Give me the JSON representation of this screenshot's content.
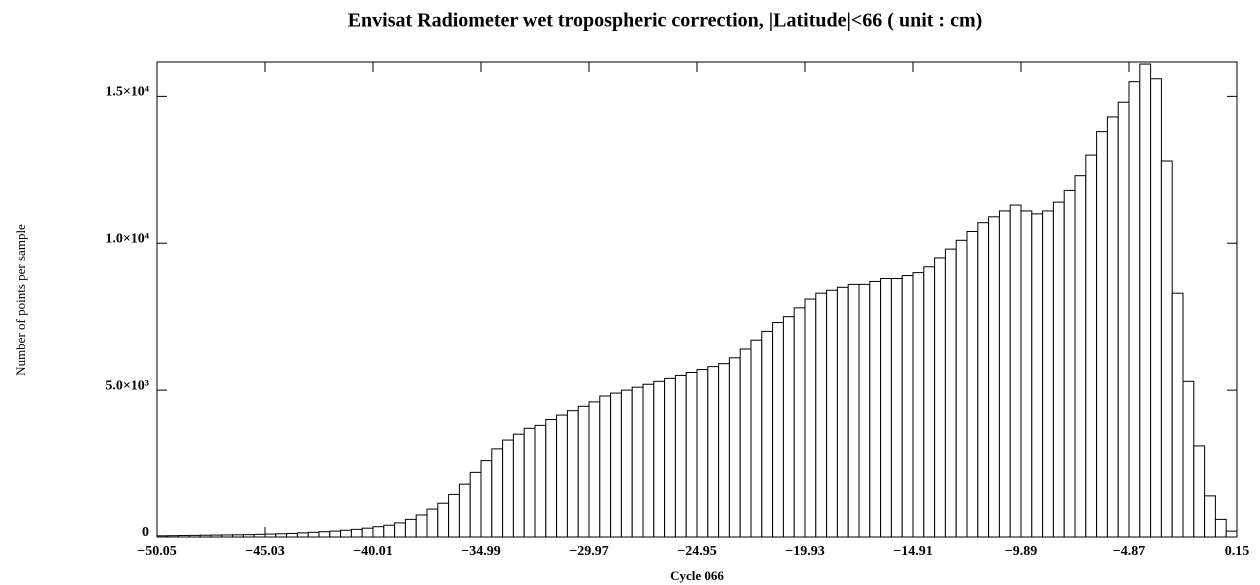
{
  "chart_data": {
    "type": "histogram",
    "title": "Envisat Radiometer wet tropospheric correction, |Latitude|<66  ( unit : cm)",
    "xlabel": "Cycle 066",
    "ylabel": "Number of points per sample",
    "bins": [
      -50.05,
      -49.548,
      -49.046,
      -48.544,
      -48.042,
      -47.54,
      -47.038,
      -46.536,
      -46.034,
      -45.532,
      -45.03,
      -44.528,
      -44.026,
      -43.524,
      -43.022,
      -42.52,
      -42.018,
      -41.516,
      -41.014,
      -40.512,
      -40.01,
      -39.508,
      -39.006,
      -38.504,
      -38.002,
      -37.5,
      -36.998,
      -36.496,
      -35.994,
      -35.492,
      -34.99,
      -34.488,
      -33.986,
      -33.484,
      -32.982,
      -32.48,
      -31.978,
      -31.476,
      -30.974,
      -30.472,
      -29.97,
      -29.468,
      -28.966,
      -28.464,
      -27.962,
      -27.46,
      -26.958,
      -26.456,
      -25.954,
      -25.452,
      -24.95,
      -24.448,
      -23.946,
      -23.444,
      -22.942,
      -22.44,
      -21.938,
      -21.436,
      -20.934,
      -20.432,
      -19.93,
      -19.428,
      -18.926,
      -18.424,
      -17.922,
      -17.42,
      -16.918,
      -16.416,
      -15.914,
      -15.412,
      -14.91,
      -14.408,
      -13.906,
      -13.404,
      -12.902,
      -12.4,
      -11.898,
      -11.396,
      -10.894,
      -10.392,
      -9.89,
      -9.388,
      -8.886,
      -8.384,
      -7.882,
      -7.38,
      -6.878,
      -6.376,
      -5.874,
      -5.372,
      -4.87,
      -4.368,
      -3.866,
      -3.364,
      -2.862,
      -2.36,
      -1.858,
      -1.356,
      -0.854,
      -0.352,
      0.15
    ],
    "counts": [
      40,
      45,
      50,
      55,
      60,
      65,
      70,
      75,
      80,
      90,
      100,
      110,
      120,
      140,
      160,
      180,
      200,
      230,
      260,
      300,
      350,
      400,
      480,
      600,
      750,
      950,
      1150,
      1450,
      1800,
      2200,
      2600,
      3000,
      3300,
      3500,
      3700,
      3800,
      4000,
      4150,
      4300,
      4450,
      4600,
      4800,
      4900,
      5000,
      5100,
      5200,
      5300,
      5400,
      5500,
      5600,
      5700,
      5800,
      5900,
      6100,
      6400,
      6700,
      7000,
      7300,
      7500,
      7800,
      8100,
      8300,
      8400,
      8500,
      8600,
      8600,
      8700,
      8800,
      8800,
      8900,
      9000,
      9200,
      9500,
      9800,
      10100,
      10400,
      10700,
      10900,
      11100,
      11300,
      11100,
      11000,
      11100,
      11400,
      11800,
      12300,
      13000,
      13800,
      14300,
      14800,
      15500,
      16100,
      15600,
      12800,
      8300,
      5300,
      3100,
      1400,
      600,
      200
    ],
    "color": "#ffffff",
    "xlim": [
      -50.05,
      0.15
    ],
    "xticks": [
      {
        "value": -50.05,
        "label": "−50.05"
      },
      {
        "value": -45.03,
        "label": "−45.03"
      },
      {
        "value": -40.01,
        "label": "−40.01"
      },
      {
        "value": -34.99,
        "label": "−34.99"
      },
      {
        "value": -29.97,
        "label": "−29.97"
      },
      {
        "value": -24.95,
        "label": "−24.95"
      },
      {
        "value": -19.93,
        "label": "−19.93"
      },
      {
        "value": -14.91,
        "label": "−14.91"
      },
      {
        "value": -9.89,
        "label": "−9.89"
      },
      {
        "value": -4.87,
        "label": "−4.87"
      },
      0.15
    ],
    "ylim": [
      0,
      16170
    ],
    "yticks": [
      0,
      {
        "value": 5000,
        "label": "5.0×10³"
      },
      {
        "value": 10000,
        "label": "1.0×10⁴"
      },
      {
        "value": 15000,
        "label": "1.5×10⁴"
      }
    ]
  }
}
